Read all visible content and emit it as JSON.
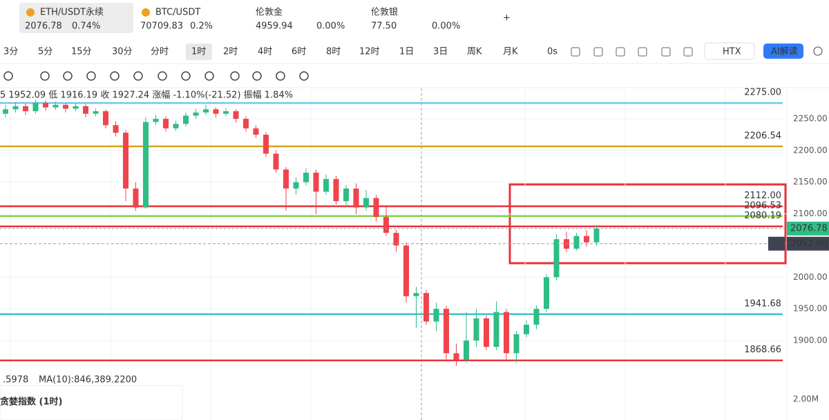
{
  "tabs": [
    {
      "symbol": "ETH/USDT永续",
      "price": "2076.78",
      "change": "0.74%"
    },
    {
      "symbol": "BTC/USDT",
      "price": "70709.83",
      "change": "0.2%"
    },
    {
      "symbol": "伦敦金",
      "price": "4959.94",
      "change": "0.00%"
    },
    {
      "symbol": "伦敦银",
      "price": "77.50",
      "change": "0.00%"
    }
  ],
  "timeframes": [
    "3分",
    "5分",
    "15分",
    "30分",
    "分时",
    "1时",
    "2时",
    "4时",
    "6时",
    "8时",
    "12时",
    "1日",
    "3日",
    "周K",
    "月K"
  ],
  "active_timeframe": "1时",
  "countdown": "0s",
  "exchange": "HTX",
  "ai_button": "AI解读",
  "chart_data": {
    "type": "candlestick",
    "info": "5 1952.09 低 1916.19 收 1927.24 涨幅 -1.10%(-21.52) 振幅 1.84%",
    "ylim": [
      1840,
      2298
    ],
    "yticks": [
      {
        "value": 2250,
        "label": "2250.00"
      },
      {
        "value": 2200,
        "label": "2200.00"
      },
      {
        "value": 2150,
        "label": "2150.00"
      },
      {
        "value": 2100,
        "label": "2100.00"
      },
      {
        "value": 2000,
        "label": "2000.00"
      },
      {
        "value": 1950,
        "label": "1950.00"
      },
      {
        "value": 1900,
        "label": "1900.00"
      }
    ],
    "colors": {
      "up": "#2ebd85",
      "down": "#f0444c"
    },
    "ohlc": [
      [
        2258,
        2272,
        2252,
        2265
      ],
      [
        2265,
        2276,
        2260,
        2270
      ],
      [
        2270,
        2274,
        2256,
        2262
      ],
      [
        2262,
        2280,
        2258,
        2275
      ],
      [
        2275,
        2279,
        2263,
        2268
      ],
      [
        2268,
        2277,
        2264,
        2272
      ],
      [
        2272,
        2275,
        2260,
        2266
      ],
      [
        2266,
        2274,
        2262,
        2270
      ],
      [
        2270,
        2273,
        2252,
        2258
      ],
      [
        2258,
        2266,
        2254,
        2262
      ],
      [
        2262,
        2265,
        2235,
        2240
      ],
      [
        2240,
        2246,
        2222,
        2228
      ],
      [
        2228,
        2232,
        2120,
        2140
      ],
      [
        2140,
        2150,
        2105,
        2110
      ],
      [
        2110,
        2252,
        2108,
        2245
      ],
      [
        2245,
        2256,
        2240,
        2250
      ],
      [
        2250,
        2254,
        2230,
        2235
      ],
      [
        2235,
        2247,
        2231,
        2242
      ],
      [
        2242,
        2260,
        2238,
        2255
      ],
      [
        2255,
        2266,
        2250,
        2260
      ],
      [
        2260,
        2272,
        2256,
        2265
      ],
      [
        2265,
        2268,
        2252,
        2258
      ],
      [
        2258,
        2267,
        2254,
        2262
      ],
      [
        2262,
        2265,
        2244,
        2250
      ],
      [
        2250,
        2254,
        2230,
        2235
      ],
      [
        2235,
        2240,
        2220,
        2225
      ],
      [
        2225,
        2229,
        2190,
        2195
      ],
      [
        2195,
        2200,
        2165,
        2170
      ],
      [
        2170,
        2174,
        2105,
        2140
      ],
      [
        2140,
        2158,
        2130,
        2150
      ],
      [
        2150,
        2172,
        2145,
        2165
      ],
      [
        2165,
        2170,
        2100,
        2135
      ],
      [
        2135,
        2162,
        2130,
        2155
      ],
      [
        2155,
        2160,
        2115,
        2120
      ],
      [
        2120,
        2145,
        2112,
        2140
      ],
      [
        2140,
        2148,
        2100,
        2110
      ],
      [
        2110,
        2138,
        2105,
        2125
      ],
      [
        2125,
        2130,
        2088,
        2095
      ],
      [
        2095,
        2112,
        2065,
        2070
      ],
      [
        2070,
        2075,
        2040,
        2050
      ],
      [
        2050,
        2055,
        1960,
        1970
      ],
      [
        1970,
        1985,
        1920,
        1975
      ],
      [
        1975,
        1980,
        1925,
        1930
      ],
      [
        1930,
        1960,
        1915,
        1950
      ],
      [
        1950,
        1955,
        1870,
        1880
      ],
      [
        1880,
        1895,
        1860,
        1870
      ],
      [
        1870,
        1945,
        1865,
        1900
      ],
      [
        1900,
        1950,
        1890,
        1935
      ],
      [
        1935,
        1940,
        1885,
        1890
      ],
      [
        1890,
        1962,
        1885,
        1945
      ],
      [
        1945,
        1950,
        1870,
        1880
      ],
      [
        1880,
        1915,
        1865,
        1910
      ],
      [
        1910,
        1932,
        1905,
        1925
      ],
      [
        1925,
        1955,
        1918,
        1950
      ],
      [
        1950,
        2005,
        1945,
        2000
      ],
      [
        2000,
        2068,
        1995,
        2060
      ],
      [
        2060,
        2072,
        2040,
        2045
      ],
      [
        2045,
        2070,
        2042,
        2065
      ],
      [
        2065,
        2074,
        2048,
        2055
      ],
      [
        2055,
        2082,
        2050,
        2076.78
      ]
    ],
    "levels": [
      {
        "value": 2275,
        "label": "2275.00",
        "color": "#6ec6f0"
      },
      {
        "value": 2206.54,
        "label": "2206.54",
        "color": "#d4a514"
      },
      {
        "value": 2112,
        "label": "2112.00",
        "color": "#e8323c"
      },
      {
        "value": 2096.53,
        "label": "2096.53",
        "color": "#7ed348"
      },
      {
        "value": 2080.19,
        "label": "2080.19",
        "color": "#e8323c"
      },
      {
        "value": 1941.68,
        "label": "1941.68",
        "color": "#3cc6c6"
      },
      {
        "value": 1868.66,
        "label": "1868.66",
        "color": "#e8323c"
      }
    ],
    "last_price": {
      "value": 2076.78,
      "label": "2076.78"
    },
    "crosshair": {
      "value": 2052.9,
      "label": "2052.90"
    },
    "ma_text": ".5978",
    "ma10": "MA(10):846,389.2200"
  },
  "indicator_panel": {
    "title": "贪婪指数 (1时)",
    "axis_label": "2.00M"
  }
}
